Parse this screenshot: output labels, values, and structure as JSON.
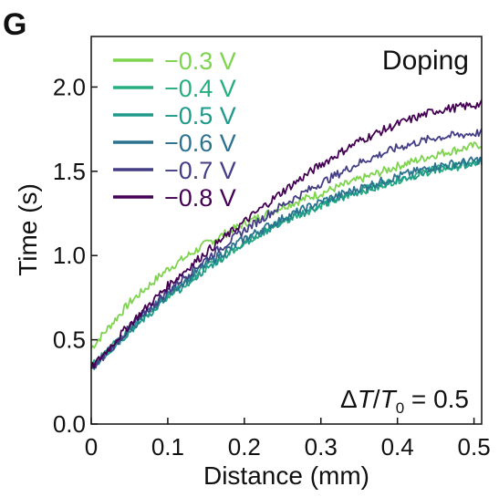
{
  "panel_label": "G",
  "chart_data": {
    "type": "line",
    "inset_title": "Doping",
    "annotation": {
      "prefix": "Δ",
      "var": "T",
      "slash": "/",
      "var2": "T",
      "sub": "0",
      "rest": " = 0.5"
    },
    "xlabel": "Distance (mm)",
    "ylabel": "Time (s)",
    "xlim": [
      0,
      0.51
    ],
    "ylim": [
      0,
      2.3
    ],
    "xticks": [
      0,
      0.1,
      0.2,
      0.3,
      0.4,
      0.5
    ],
    "xtick_labels": [
      "0",
      "0.1",
      "0.2",
      "0.3",
      "0.4",
      "0.5"
    ],
    "yticks": [
      0,
      0.5,
      1.0,
      1.5,
      2.0
    ],
    "ytick_labels": [
      "0.0",
      "0.5",
      "1.0",
      "1.5",
      "2.0"
    ],
    "grid": false,
    "legend_position": "top-left",
    "x": [
      0,
      0.05,
      0.1,
      0.15,
      0.2,
      0.25,
      0.3,
      0.35,
      0.4,
      0.45,
      0.51
    ],
    "series": [
      {
        "name": "−0.3 V",
        "color": "#7ed34f",
        "values": [
          0.45,
          0.72,
          0.92,
          1.07,
          1.19,
          1.29,
          1.37,
          1.45,
          1.53,
          1.6,
          1.66
        ]
      },
      {
        "name": "−0.4 V",
        "color": "#27ae80",
        "values": [
          0.34,
          0.56,
          0.76,
          0.93,
          1.08,
          1.2,
          1.3,
          1.38,
          1.45,
          1.51,
          1.55
        ]
      },
      {
        "name": "−0.5 V",
        "color": "#1f9a8a",
        "values": [
          0.33,
          0.55,
          0.75,
          0.92,
          1.08,
          1.2,
          1.3,
          1.38,
          1.45,
          1.51,
          1.56
        ]
      },
      {
        "name": "−0.6 V",
        "color": "#2c718e",
        "values": [
          0.33,
          0.56,
          0.77,
          0.95,
          1.1,
          1.22,
          1.32,
          1.4,
          1.47,
          1.53,
          1.57
        ]
      },
      {
        "name": "−0.7 V",
        "color": "#433e85",
        "values": [
          0.32,
          0.57,
          0.79,
          0.98,
          1.15,
          1.3,
          1.43,
          1.55,
          1.64,
          1.7,
          1.73
        ]
      },
      {
        "name": "−0.8 V",
        "color": "#440154",
        "values": [
          0.33,
          0.59,
          0.82,
          1.02,
          1.2,
          1.38,
          1.54,
          1.68,
          1.78,
          1.86,
          1.9
        ]
      }
    ]
  }
}
